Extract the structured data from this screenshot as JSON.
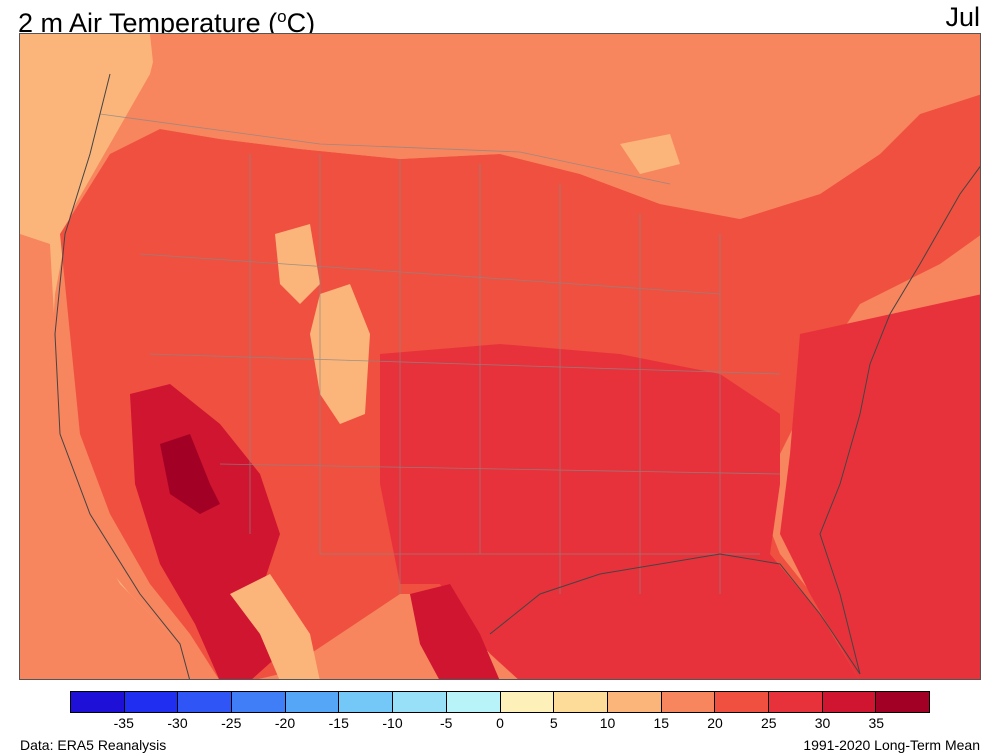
{
  "title_prefix": "2 m Air Temperature (",
  "title_degree": "o",
  "title_suffix": "C)",
  "month": "Jul",
  "footer_left": "Data: ERA5 Reanalysis",
  "footer_right": "1991-2020 Long-Term Mean",
  "colorbar": {
    "colors": [
      "#1e10d6",
      "#1f2ef0",
      "#2f55f7",
      "#3f7ef6",
      "#55a6f7",
      "#74c8f7",
      "#98e0f7",
      "#b8f3fa",
      "#fdf1b9",
      "#fddb99",
      "#fbb57a",
      "#f7855e",
      "#f0503f",
      "#e8323b",
      "#cf1530",
      "#a30025"
    ],
    "ticks": [
      "-35",
      "-30",
      "-25",
      "-20",
      "-15",
      "-10",
      "-5",
      "0",
      "5",
      "10",
      "15",
      "20",
      "25",
      "30",
      "35"
    ]
  },
  "regions": {
    "ocean_north": "#f7855e",
    "coast_cool": "#fbb57a",
    "land_warm": "#f0503f",
    "land_hot": "#e8323b",
    "desert": "#cf1530",
    "desert_core": "#a30025",
    "mountain": "#fbb57a",
    "high_mountain": "#fddb99"
  }
}
